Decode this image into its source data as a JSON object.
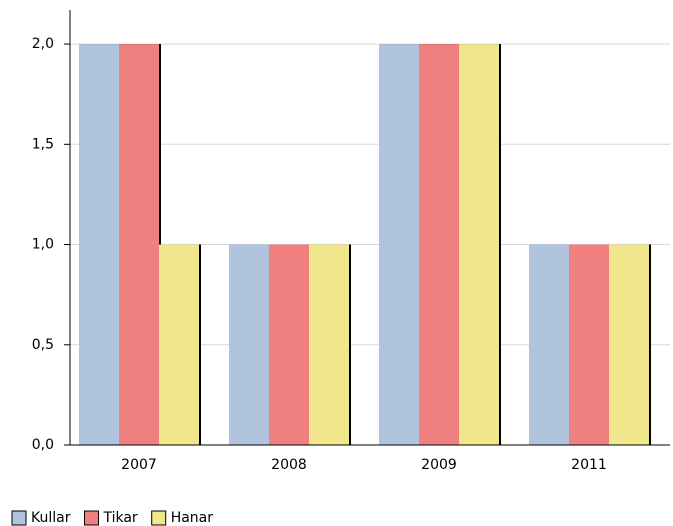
{
  "chart_data": {
    "type": "bar",
    "categories": [
      "2007",
      "2008",
      "2009",
      "2011"
    ],
    "series": [
      {
        "name": "Kullar",
        "color": "#b0c4de",
        "values": [
          2,
          1,
          2,
          1
        ]
      },
      {
        "name": "Tikar",
        "color": "#f08080",
        "values": [
          2,
          1,
          2,
          1
        ]
      },
      {
        "name": "Hanar",
        "color": "#f0e68c",
        "values": [
          1,
          1,
          2,
          1
        ]
      }
    ],
    "ylim": [
      0,
      2.17
    ],
    "yticks": [
      {
        "value": 0,
        "label": "0,0"
      },
      {
        "value": 0.5,
        "label": "0,5"
      },
      {
        "value": 1,
        "label": "1,0"
      },
      {
        "value": 1.5,
        "label": "1,5"
      },
      {
        "value": 2,
        "label": "2,0"
      }
    ],
    "grid": true,
    "legend": "bottom-left"
  }
}
